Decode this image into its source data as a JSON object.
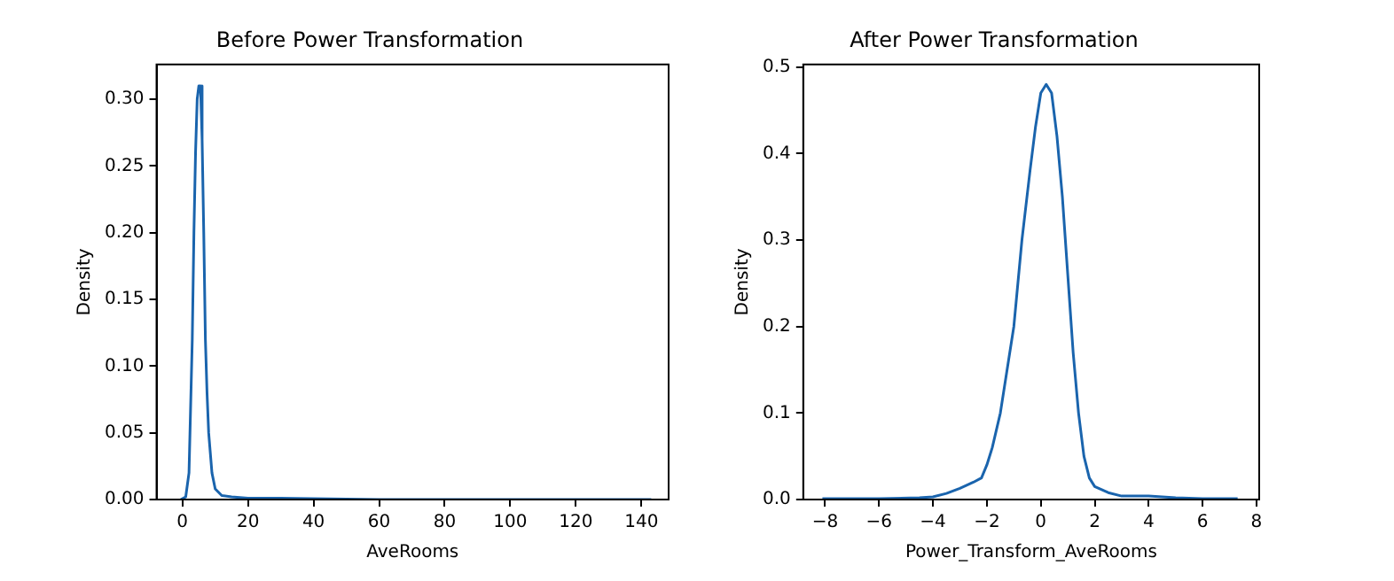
{
  "chart_data": [
    {
      "type": "line",
      "title": "Before Power Transformation",
      "xlabel": "AveRooms",
      "ylabel": "Density",
      "xlim": [
        -7.9,
        148.3
      ],
      "ylim": [
        0,
        0.326
      ],
      "xticks": [
        0,
        20,
        40,
        60,
        80,
        100,
        120,
        140
      ],
      "yticks": [
        {
          "value": 0,
          "label": "0.00"
        },
        {
          "value": 0.05,
          "label": "0.05"
        },
        {
          "value": 0.1,
          "label": "0.10"
        },
        {
          "value": 0.15,
          "label": "0.15"
        },
        {
          "value": 0.2,
          "label": "0.20"
        },
        {
          "value": 0.25,
          "label": "0.25"
        },
        {
          "value": 0.3,
          "label": "0.30"
        }
      ],
      "grid": false,
      "legend": false,
      "marker": "none",
      "line_style": "solid",
      "series": [
        {
          "color": "#1a64ad",
          "x": [
            -0.5,
            1,
            2,
            3,
            3.5,
            4,
            4.5,
            5,
            5.5,
            6,
            6.5,
            7,
            7.5,
            8,
            9,
            10,
            12,
            15,
            20,
            30,
            60,
            100,
            143
          ],
          "values": [
            0,
            0.002,
            0.02,
            0.12,
            0.2,
            0.26,
            0.3,
            0.31,
            0.31,
            0.27,
            0.2,
            0.12,
            0.08,
            0.05,
            0.02,
            0.008,
            0.003,
            0.002,
            0.001,
            0.001,
            0,
            0,
            0
          ]
        }
      ]
    },
    {
      "type": "line",
      "title": "After Power Transformation",
      "xlabel": "Power_Transform_AveRooms",
      "ylabel": "Density",
      "xlim": [
        -8.81,
        8.1
      ],
      "ylim": [
        0,
        0.503
      ],
      "xticks": [
        {
          "value": -8,
          "label": "−8"
        },
        {
          "value": -6,
          "label": "−6"
        },
        {
          "value": -4,
          "label": "−4"
        },
        {
          "value": -2,
          "label": "−2"
        },
        0,
        2,
        4,
        6,
        8
      ],
      "yticks": [
        {
          "value": 0,
          "label": "0.0"
        },
        0.1,
        0.2,
        0.3,
        0.4,
        0.5
      ],
      "grid": false,
      "legend": false,
      "marker": "none",
      "line_style": "solid",
      "series": [
        {
          "color": "#1a64ad",
          "x": [
            -8.1,
            -6,
            -4.5,
            -4,
            -3.5,
            -3,
            -2.5,
            -2.2,
            -2,
            -1.8,
            -1.5,
            -1.2,
            -1,
            -0.7,
            -0.4,
            -0.2,
            0,
            0.2,
            0.4,
            0.6,
            0.8,
            1,
            1.2,
            1.4,
            1.6,
            1.8,
            2,
            2.5,
            3,
            4,
            4.5,
            5,
            6,
            7.3
          ],
          "values": [
            0.001,
            0.001,
            0.002,
            0.003,
            0.007,
            0.013,
            0.02,
            0.025,
            0.04,
            0.06,
            0.1,
            0.16,
            0.2,
            0.3,
            0.38,
            0.43,
            0.47,
            0.48,
            0.47,
            0.42,
            0.35,
            0.26,
            0.17,
            0.1,
            0.05,
            0.025,
            0.015,
            0.008,
            0.004,
            0.004,
            0.003,
            0.002,
            0.001,
            0.001
          ]
        }
      ]
    }
  ]
}
